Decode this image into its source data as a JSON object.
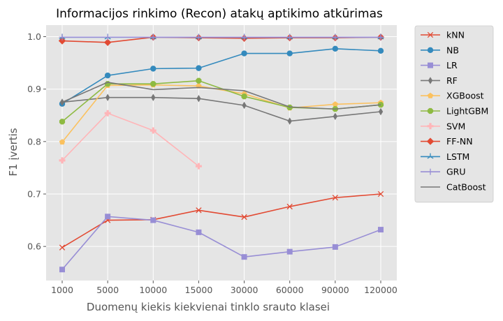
{
  "chart_data": {
    "type": "line",
    "title": "Informacijos rinkimo (Recon) atakų aptikimo atkūrimas",
    "xlabel": "Duomenų kiekis kiekvienai tinklo srauto klasei",
    "ylabel": "F1 įvertis",
    "categories": [
      "1000",
      "5000",
      "10000",
      "15000",
      "30000",
      "60000",
      "90000",
      "120000"
    ],
    "ylim": [
      0.535,
      1.022
    ],
    "yticks": [
      "0.6",
      "0.7",
      "0.8",
      "0.9",
      "1.0"
    ],
    "ytick_values": [
      0.6,
      0.7,
      0.8,
      0.9,
      1.0
    ],
    "grid": true,
    "legend_position": "outside-right",
    "series": [
      {
        "name": "kNN",
        "color": "#E24A33",
        "marker": "x",
        "values": [
          0.598,
          0.65,
          0.651,
          0.669,
          0.656,
          0.676,
          0.693,
          0.7
        ]
      },
      {
        "name": "NB",
        "color": "#348ABD",
        "marker": "circle",
        "values": [
          0.872,
          0.926,
          0.939,
          0.94,
          0.968,
          0.968,
          0.977,
          0.973
        ]
      },
      {
        "name": "LR",
        "color": "#988ED5",
        "marker": "square",
        "values": [
          0.556,
          0.657,
          0.65,
          0.627,
          0.58,
          0.59,
          0.599,
          0.632
        ]
      },
      {
        "name": "RF",
        "color": "#777777",
        "marker": "thin-diamond",
        "values": [
          0.875,
          0.884,
          0.884,
          0.882,
          0.869,
          0.839,
          0.848,
          0.857
        ]
      },
      {
        "name": "XGBoost",
        "color": "#FBC15E",
        "marker": "pentagon",
        "values": [
          0.799,
          0.907,
          0.908,
          0.906,
          0.891,
          0.864,
          0.871,
          0.874
        ]
      },
      {
        "name": "LightGBM",
        "color": "#8EBA42",
        "marker": "octagon",
        "values": [
          0.838,
          0.91,
          0.91,
          0.916,
          0.886,
          0.865,
          0.862,
          0.87
        ]
      },
      {
        "name": "SVM",
        "color": "#FFB5B8",
        "marker": "plus-filled",
        "values": [
          0.764,
          0.854,
          0.821,
          0.753,
          null,
          null,
          null,
          null
        ]
      },
      {
        "name": "FF-NN",
        "color": "#E24A33",
        "marker": "diamond",
        "values": [
          0.992,
          0.989,
          0.999,
          0.998,
          0.997,
          0.998,
          0.998,
          0.999
        ]
      },
      {
        "name": "LSTM",
        "color": "#348ABD",
        "marker": "tri",
        "values": [
          0.999,
          0.999,
          0.999,
          0.999,
          0.999,
          0.999,
          0.999,
          0.999
        ]
      },
      {
        "name": "GRU",
        "color": "#988ED5",
        "marker": "plus",
        "values": [
          0.999,
          0.999,
          0.999,
          0.999,
          0.999,
          0.999,
          0.999,
          0.999
        ]
      },
      {
        "name": "CatBoost",
        "color": "#777777",
        "marker": "none",
        "values": [
          0.875,
          0.913,
          0.899,
          0.903,
          0.897,
          0.866,
          0.862,
          0.87
        ]
      }
    ]
  }
}
